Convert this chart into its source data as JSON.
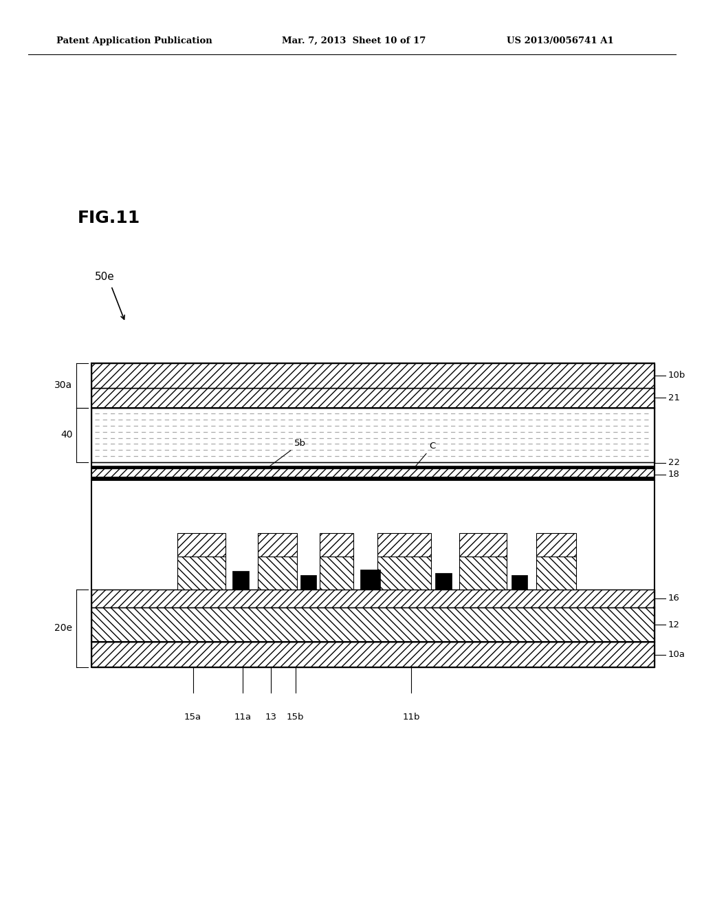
{
  "header_left": "Patent Application Publication",
  "header_mid": "Mar. 7, 2013  Sheet 10 of 17",
  "header_right": "US 2013/0056741 A1",
  "fig_label": "FIG.11",
  "component_label": "50e",
  "background_color": "#ffffff"
}
